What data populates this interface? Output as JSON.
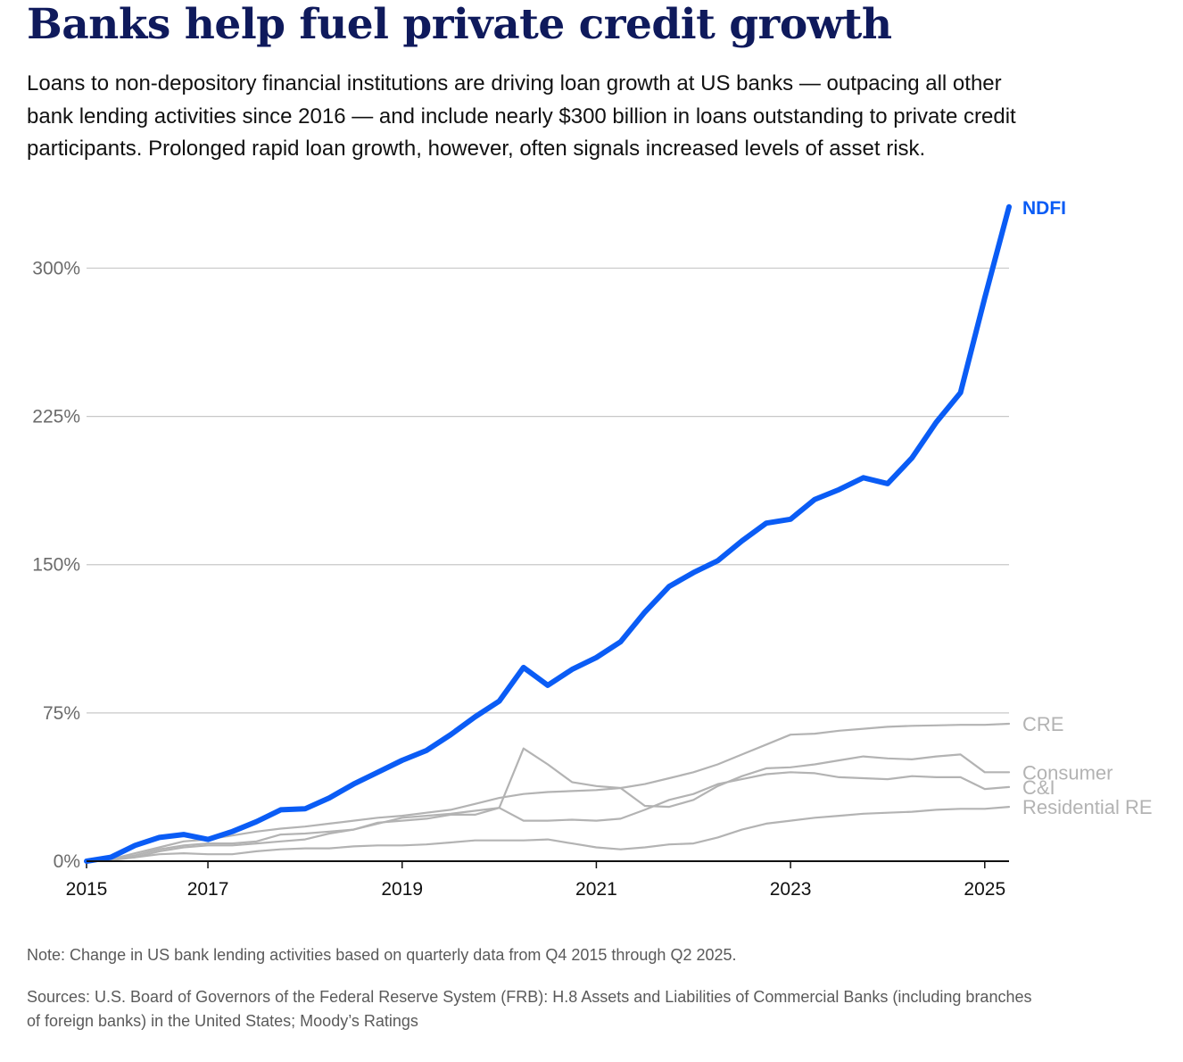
{
  "header": {
    "title": "Banks help fuel private credit growth",
    "subtitle": "Loans to non-depository financial institutions are driving loan growth at US banks — outpacing all other bank lending activities since 2016 — and include nearly $300 billion in loans outstanding to private credit participants. Prolonged rapid loan growth, however, often signals increased levels of asset risk."
  },
  "footer": {
    "note": "Note: Change in US bank lending activities based on quarterly data from Q4 2015 through Q2 2025.",
    "sources": "Sources: U.S. Board of Governors of the Federal Reserve System (FRB): H.8 Assets and Liabilities of Commercial Banks (including branches of foreign banks) in the United States; Moody’s Ratings"
  },
  "colors": {
    "ndfi": "#0a5cf5",
    "other": "#b3b3b3",
    "grid": "#c8c8c8",
    "axis": "#111111",
    "tick_label": "#6b6b6b"
  },
  "chart_data": {
    "type": "line",
    "x_start": 2015.75,
    "x_step": 0.25,
    "xlim": [
      2015.75,
      2025.25
    ],
    "ylim": [
      0,
      330
    ],
    "yticks": [
      0,
      75,
      150,
      225,
      300
    ],
    "ytick_labels": [
      "0%",
      "75%",
      "150%",
      "225%",
      "300%"
    ],
    "xticks": [
      2015.75,
      2017,
      2019,
      2021,
      2023,
      2025
    ],
    "xtick_labels": [
      "2015",
      "2017",
      "2019",
      "2021",
      "2023",
      "2025"
    ],
    "grid": true,
    "series": [
      {
        "name": "NDFI",
        "highlight": true,
        "values": [
          0,
          2,
          8,
          12,
          13.5,
          11,
          15,
          20,
          26,
          26.5,
          32,
          39,
          45,
          51,
          56,
          64,
          73,
          81,
          98,
          89,
          97,
          103,
          111,
          126,
          139,
          146,
          152,
          162,
          171,
          173,
          183,
          188,
          194,
          191,
          204,
          222,
          237,
          285,
          331
        ]
      },
      {
        "name": "CRE",
        "highlight": false,
        "values": [
          0,
          1,
          4,
          7,
          10,
          11,
          13,
          15,
          16.5,
          17.5,
          19,
          20.5,
          22,
          23,
          24.5,
          26,
          29,
          32,
          34,
          35,
          35.5,
          36,
          37,
          39,
          42,
          45,
          49,
          54,
          59,
          64,
          64.5,
          66,
          67,
          68,
          68.5,
          68.7,
          69,
          69,
          69.5
        ]
      },
      {
        "name": "Consumer",
        "highlight": false,
        "values": [
          0,
          0.5,
          2,
          5,
          7,
          8,
          8,
          9,
          10,
          11,
          14,
          16,
          19.5,
          20.5,
          21.5,
          23.5,
          23.5,
          27,
          57,
          49,
          40,
          38,
          37,
          28,
          27.5,
          31,
          38,
          43,
          47,
          47.5,
          49,
          51,
          53,
          52,
          51.5,
          53,
          54,
          45,
          45
        ]
      },
      {
        "name": "C&I",
        "highlight": false,
        "values": [
          0,
          0.5,
          3,
          6,
          8,
          9,
          9,
          10,
          13.5,
          14,
          15,
          16,
          19,
          22,
          23,
          24,
          25.5,
          27,
          20.5,
          20.5,
          21,
          20.5,
          21.5,
          26,
          31,
          34,
          39,
          41.5,
          44,
          45,
          44.5,
          42.5,
          42,
          41.5,
          43,
          42.5,
          42.5,
          36.5,
          37.5
        ]
      },
      {
        "name": "Residential RE",
        "highlight": false,
        "values": [
          0,
          1,
          2,
          3.5,
          4,
          3.5,
          3.5,
          5,
          6,
          6.5,
          6.5,
          7.5,
          8,
          8,
          8.5,
          9.5,
          10.5,
          10.5,
          10.5,
          11,
          9,
          7,
          6,
          7,
          8.5,
          9,
          12,
          16,
          19,
          20.5,
          22,
          23,
          24,
          24.5,
          25,
          26,
          26.5,
          26.5,
          27.5
        ]
      }
    ]
  }
}
